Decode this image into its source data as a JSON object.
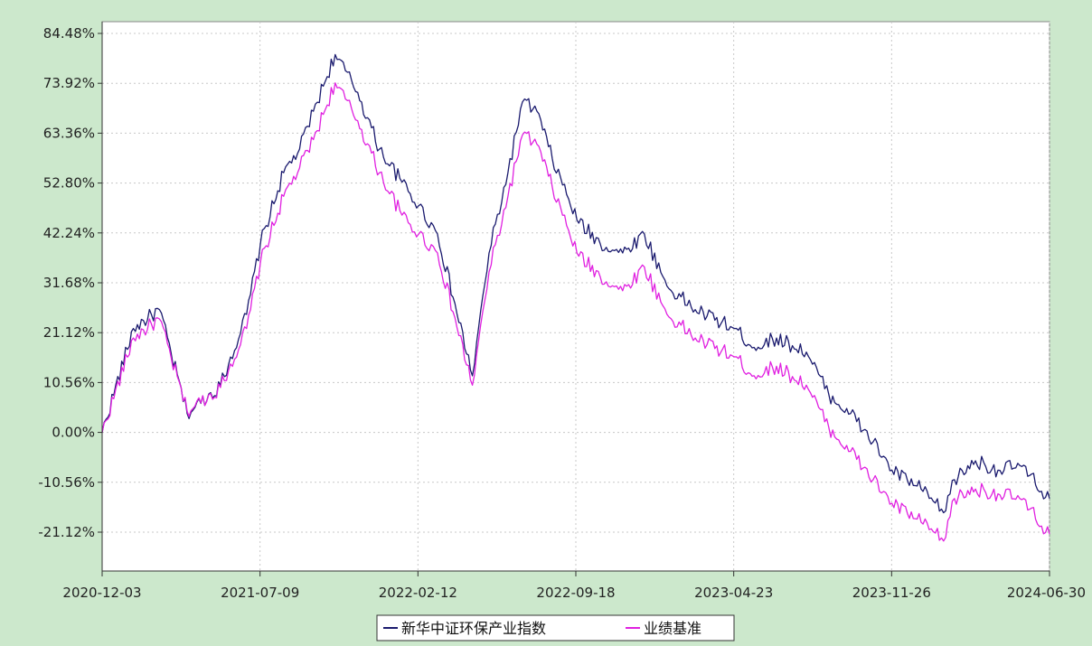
{
  "chart_data": {
    "type": "line",
    "title": "",
    "xlabel": "",
    "ylabel": "",
    "x_tick_labels": [
      "2020-12-03",
      "2021-07-09",
      "2022-02-12",
      "2022-09-18",
      "2023-04-23",
      "2023-11-26",
      "2024-06-30"
    ],
    "y_tick_labels": [
      "84.48%",
      "73.92%",
      "63.36%",
      "52.80%",
      "42.24%",
      "31.68%",
      "21.12%",
      "10.56%",
      "0.00%",
      "-10.56%",
      "-21.12%"
    ],
    "ylim": [
      -31.68,
      84.48
    ],
    "y_unit": "%",
    "grid": true,
    "legend_position": "bottom-center",
    "x": [
      "2020-12-03",
      "2021-01-15",
      "2021-02-20",
      "2021-03-30",
      "2021-05-15",
      "2021-06-20",
      "2021-07-09",
      "2021-08-10",
      "2021-09-01",
      "2021-09-20",
      "2021-10-20",
      "2021-11-20",
      "2021-12-20",
      "2022-01-20",
      "2022-02-12",
      "2022-03-10",
      "2022-04-27",
      "2022-05-20",
      "2022-06-15",
      "2022-07-05",
      "2022-07-25",
      "2022-08-15",
      "2022-09-18",
      "2022-10-20",
      "2022-11-20",
      "2022-12-20",
      "2023-01-20",
      "2023-02-28",
      "2023-04-23",
      "2023-05-20",
      "2023-06-20",
      "2023-07-31",
      "2023-08-31",
      "2023-09-30",
      "2023-10-31",
      "2023-11-26",
      "2024-01-05",
      "2024-02-05",
      "2024-02-20",
      "2024-03-20",
      "2024-04-20",
      "2024-05-20",
      "2024-06-30"
    ],
    "series": [
      {
        "name": "新华中证环保产业指数",
        "color": "#1a1a6e",
        "values": [
          0.0,
          22.0,
          26.0,
          4.0,
          10.0,
          25.0,
          40.0,
          55.0,
          60.0,
          68.0,
          80.0,
          72.0,
          60.0,
          53.0,
          48.0,
          42.0,
          12.0,
          38.0,
          55.0,
          70.0,
          68.0,
          58.0,
          45.0,
          40.0,
          38.0,
          42.0,
          31.0,
          26.0,
          22.0,
          18.0,
          20.0,
          17.0,
          8.0,
          4.0,
          -2.0,
          -8.0,
          -12.0,
          -17.0,
          -10.0,
          -6.0,
          -8.0,
          -7.0,
          -14.0
        ]
      },
      {
        "name": "业绩基准",
        "color": "#e020e0",
        "values": [
          0.0,
          20.0,
          24.0,
          4.5,
          9.5,
          22.0,
          36.0,
          50.0,
          56.0,
          62.0,
          74.0,
          66.0,
          55.0,
          46.0,
          42.0,
          38.0,
          10.0,
          34.0,
          50.0,
          63.0,
          61.0,
          52.0,
          38.0,
          33.0,
          30.0,
          35.0,
          25.0,
          20.0,
          16.0,
          12.0,
          14.0,
          10.0,
          1.0,
          -4.0,
          -10.0,
          -15.0,
          -19.0,
          -23.0,
          -14.0,
          -12.0,
          -13.0,
          -14.0,
          -21.5
        ]
      }
    ]
  },
  "legend": {
    "items": [
      {
        "label": "新华中证环保产业指数",
        "color": "#1a1a6e"
      },
      {
        "label": "业绩基准",
        "color": "#e020e0"
      }
    ]
  },
  "colors": {
    "background": "#cce8cc",
    "plot_background": "#ffffff",
    "axis": "#333333",
    "grid": "#c8c8c8"
  }
}
